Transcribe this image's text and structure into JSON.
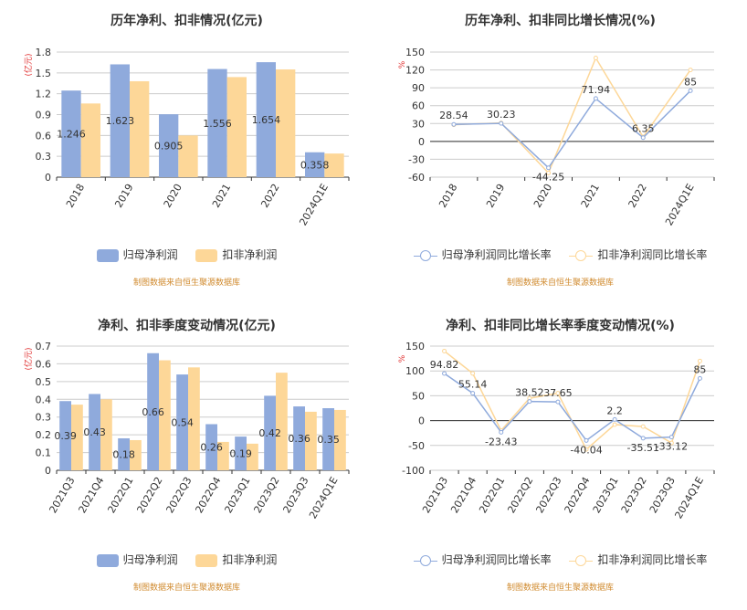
{
  "colors": {
    "net_profit": "#8faadc",
    "deducted": "#fdd798",
    "axis": "#6e7079",
    "grid": "#cccccc",
    "unit": "#e03030",
    "source": "#d08a2e"
  },
  "legend_labels": {
    "net_profit": "归母净利润",
    "deducted": "扣非净利润",
    "net_profit_growth": "归母净利润同比增长率",
    "deducted_growth": "扣非净利润同比增长率"
  },
  "source_note": "制图数据来自恒生聚源数据库",
  "chart_data": [
    {
      "type": "bar",
      "title": "历年净利、扣非情况(亿元)",
      "ylabel": "(亿元)",
      "categories": [
        "2018",
        "2019",
        "2020",
        "2021",
        "2022",
        "2024Q1E"
      ],
      "series": [
        {
          "name": "归母净利润",
          "values": [
            1.246,
            1.623,
            0.905,
            1.556,
            1.654,
            0.358
          ],
          "labels": [
            "1.246",
            "1.623",
            "0.905",
            "1.556",
            "1.654",
            "0.358"
          ]
        },
        {
          "name": "扣非净利润",
          "values": [
            1.06,
            1.38,
            0.6,
            1.44,
            1.55,
            0.34
          ]
        }
      ],
      "ylim": [
        0,
        1.8
      ],
      "yticks": [
        "0",
        "0.3",
        "0.6",
        "0.9",
        "1.2",
        "1.5",
        "1.8"
      ],
      "grid": true,
      "legend": "bottom"
    },
    {
      "type": "line",
      "title": "历年净利、扣非同比增长情况(%)",
      "ylabel": "%",
      "categories": [
        "2018",
        "2019",
        "2020",
        "2021",
        "2022",
        "2024Q1E"
      ],
      "series": [
        {
          "name": "归母净利润同比增长率",
          "values": [
            28.54,
            30.23,
            -44.25,
            71.94,
            6.35,
            85
          ],
          "labels": [
            "28.54",
            "30.23",
            "-44.25",
            "71.94",
            "6.35",
            "85"
          ]
        },
        {
          "name": "扣非净利润同比增长率",
          "values": [
            28,
            31,
            -53,
            140,
            7.5,
            120
          ]
        }
      ],
      "ylim": [
        -60,
        150
      ],
      "yticks": [
        "-60",
        "-30",
        "0",
        "30",
        "60",
        "90",
        "120",
        "150"
      ],
      "grid": true,
      "legend": "bottom"
    },
    {
      "type": "bar",
      "title": "净利、扣非季度变动情况(亿元)",
      "ylabel": "(亿元)",
      "categories": [
        "2021Q3",
        "2021Q4",
        "2022Q1",
        "2022Q2",
        "2022Q3",
        "2022Q4",
        "2023Q1",
        "2023Q2",
        "2023Q3",
        "2024Q1E"
      ],
      "series": [
        {
          "name": "归母净利润",
          "values": [
            0.39,
            0.43,
            0.18,
            0.66,
            0.54,
            0.26,
            0.19,
            0.42,
            0.36,
            0.35
          ],
          "labels": [
            "0.39",
            "0.43",
            "0.18",
            "0.66",
            "0.54",
            "0.26",
            "0.19",
            "0.42",
            "0.36",
            "0.35"
          ]
        },
        {
          "name": "扣非净利润",
          "values": [
            0.37,
            0.4,
            0.17,
            0.62,
            0.58,
            0.16,
            0.15,
            0.55,
            0.33,
            0.34
          ]
        }
      ],
      "ylim": [
        0,
        0.7
      ],
      "yticks": [
        "0",
        "0.1",
        "0.2",
        "0.3",
        "0.4",
        "0.5",
        "0.6",
        "0.7"
      ],
      "grid": true,
      "legend": "bottom"
    },
    {
      "type": "line",
      "title": "净利、扣非同比增长率季度变动情况(%)",
      "ylabel": "%",
      "categories": [
        "2021Q3",
        "2021Q4",
        "2022Q1",
        "2022Q2",
        "2022Q3",
        "2022Q4",
        "2023Q1",
        "2023Q2",
        "2023Q3",
        "2024Q1E"
      ],
      "series": [
        {
          "name": "归母净利润同比增长率",
          "values": [
            94.82,
            55.14,
            -23.43,
            38.52,
            37.65,
            -40.04,
            2.2,
            -35.51,
            -33.12,
            85
          ],
          "labels": [
            "94.82",
            "55.14",
            "-23.43",
            "38.52",
            "37.65",
            "-40.04",
            "2.2",
            "-35.51",
            "-33.12",
            "85"
          ]
        },
        {
          "name": "扣非净利润同比增长率",
          "values": [
            140,
            95,
            -20,
            45,
            55,
            -58,
            -8,
            -12,
            -45,
            120
          ]
        }
      ],
      "ylim": [
        -100,
        150
      ],
      "yticks": [
        "-100",
        "-50",
        "0",
        "50",
        "100",
        "150"
      ],
      "grid": true,
      "legend": "bottom"
    }
  ]
}
